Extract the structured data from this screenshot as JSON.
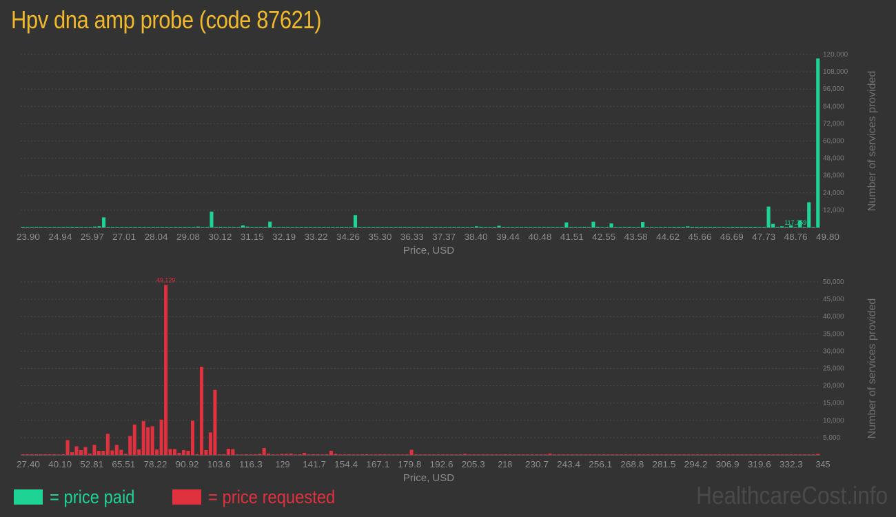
{
  "title": "Hpv dna amp probe (code 87621)",
  "colors": {
    "paid": "#1ed494",
    "requested": "#e0313f",
    "title": "#f0b92d",
    "background": "#333333"
  },
  "legend": {
    "paid_label": "= price paid",
    "requested_label": "= price requested"
  },
  "watermark": "HealthcareCost.info",
  "chart_data": [
    {
      "type": "bar",
      "title": "",
      "xlabel": "Price, USD",
      "ylabel": "Number of services provided",
      "color": "#1ed494",
      "ylim": [
        0,
        120000
      ],
      "yticks": [
        12000,
        24000,
        36000,
        48000,
        60000,
        72000,
        84000,
        96000,
        108000,
        120000
      ],
      "ytick_labels": [
        "12,000",
        "24,000",
        "36,000",
        "48,000",
        "60,000",
        "72,000",
        "84,000",
        "96,000",
        "108,000",
        "120,000"
      ],
      "xticks": [
        "23.90",
        "24.94",
        "25.97",
        "27.01",
        "28.04",
        "29.08",
        "30.12",
        "31.15",
        "32.19",
        "33.22",
        "34.26",
        "35.30",
        "36.33",
        "37.37",
        "38.40",
        "39.44",
        "40.48",
        "41.51",
        "42.55",
        "43.58",
        "44.62",
        "45.66",
        "46.69",
        "47.73",
        "48.76",
        "49.80"
      ],
      "max_label": "117,269",
      "values": [
        200,
        0,
        0,
        0,
        0,
        0,
        0,
        0,
        0,
        0,
        0,
        250,
        300,
        0,
        0,
        0,
        600,
        800,
        7000,
        0,
        0,
        0,
        0,
        0,
        0,
        0,
        0,
        0,
        0,
        0,
        0,
        0,
        0,
        0,
        0,
        0,
        0,
        0,
        0,
        600,
        0,
        0,
        11000,
        0,
        300,
        0,
        0,
        0,
        0,
        1400,
        600,
        0,
        0,
        0,
        300,
        4000,
        0,
        0,
        0,
        0,
        0,
        0,
        0,
        0,
        0,
        0,
        0,
        0,
        0,
        0,
        0,
        300,
        0,
        0,
        8500,
        0,
        0,
        0,
        0,
        0,
        0,
        0,
        0,
        0,
        0,
        0,
        0,
        0,
        0,
        0,
        0,
        0,
        0,
        0,
        0,
        0,
        0,
        0,
        0,
        0,
        0,
        800,
        500,
        0,
        0,
        400,
        1200,
        0,
        0,
        0,
        0,
        0,
        0,
        0,
        0,
        0,
        0,
        0,
        0,
        0,
        0,
        3500,
        0,
        0,
        0,
        400,
        0,
        4000,
        500,
        0,
        0,
        2800,
        0,
        0,
        0,
        300,
        0,
        0,
        3800,
        0,
        0,
        0,
        0,
        0,
        0,
        300,
        300,
        400,
        800,
        400,
        300,
        300,
        300,
        300,
        300,
        0,
        0,
        0,
        300,
        300,
        300,
        300,
        300,
        300,
        0,
        0,
        14500,
        2500,
        0,
        800,
        0,
        1400,
        0,
        5000,
        0,
        17500,
        0,
        117269
      ],
      "max_index": 172
    },
    {
      "type": "bar",
      "title": "",
      "xlabel": "Price, USD",
      "ylabel": "Number of services provided",
      "color": "#e0313f",
      "ylim": [
        0,
        50000
      ],
      "yticks": [
        5000,
        10000,
        15000,
        20000,
        25000,
        30000,
        35000,
        40000,
        45000,
        50000
      ],
      "ytick_labels": [
        "5,000",
        "10,000",
        "15,000",
        "20,000",
        "25,000",
        "30,000",
        "35,000",
        "40,000",
        "45,000",
        "50,000"
      ],
      "xticks": [
        "27.40",
        "40.10",
        "52.81",
        "65.51",
        "78.22",
        "90.92",
        "103.6",
        "116.3",
        "129",
        "141.7",
        "154.4",
        "167.1",
        "179.8",
        "192.6",
        "205.3",
        "218",
        "230.7",
        "243.4",
        "256.1",
        "268.8",
        "281.5",
        "294.2",
        "306.9",
        "319.6",
        "332.3",
        "345"
      ],
      "max_label": "49,129",
      "values": [
        200,
        200,
        200,
        200,
        100,
        100,
        200,
        200,
        0,
        200,
        4300,
        800,
        2500,
        1400,
        2300,
        400,
        2900,
        1200,
        1200,
        6100,
        1300,
        2900,
        1500,
        300,
        5500,
        8800,
        1600,
        9800,
        8000,
        8300,
        1600,
        10200,
        49129,
        1700,
        1700,
        600,
        1400,
        1200,
        9900,
        200,
        25500,
        1400,
        6500,
        18800,
        200,
        200,
        1800,
        1700,
        0,
        0,
        200,
        0,
        100,
        300,
        2000,
        400,
        0,
        0,
        300,
        300,
        400,
        0,
        100,
        600,
        0,
        100,
        200,
        0,
        200,
        1200,
        300,
        0,
        0,
        100,
        0,
        0,
        100,
        100,
        0,
        0,
        100,
        100,
        0,
        0,
        0,
        0,
        0,
        1500,
        0,
        0,
        0,
        0,
        0,
        0,
        0,
        0,
        0,
        0,
        0,
        300,
        0,
        0,
        0,
        0,
        0,
        0,
        0,
        0,
        100,
        0,
        0,
        0,
        0,
        0,
        0,
        0,
        0,
        0,
        400,
        0,
        0,
        0,
        0,
        0,
        0,
        0,
        0,
        0,
        0,
        0,
        0,
        0,
        0,
        0,
        0,
        0,
        0,
        0,
        200,
        0,
        0,
        0,
        0,
        0,
        0,
        0,
        0,
        0,
        0,
        0,
        0,
        0,
        0,
        0,
        0,
        0,
        0,
        0,
        0,
        0,
        0,
        0,
        0,
        0,
        0,
        0,
        0,
        0,
        0,
        0,
        0,
        0,
        0,
        0,
        0,
        0,
        0,
        0,
        300
      ],
      "max_index": 32
    }
  ]
}
